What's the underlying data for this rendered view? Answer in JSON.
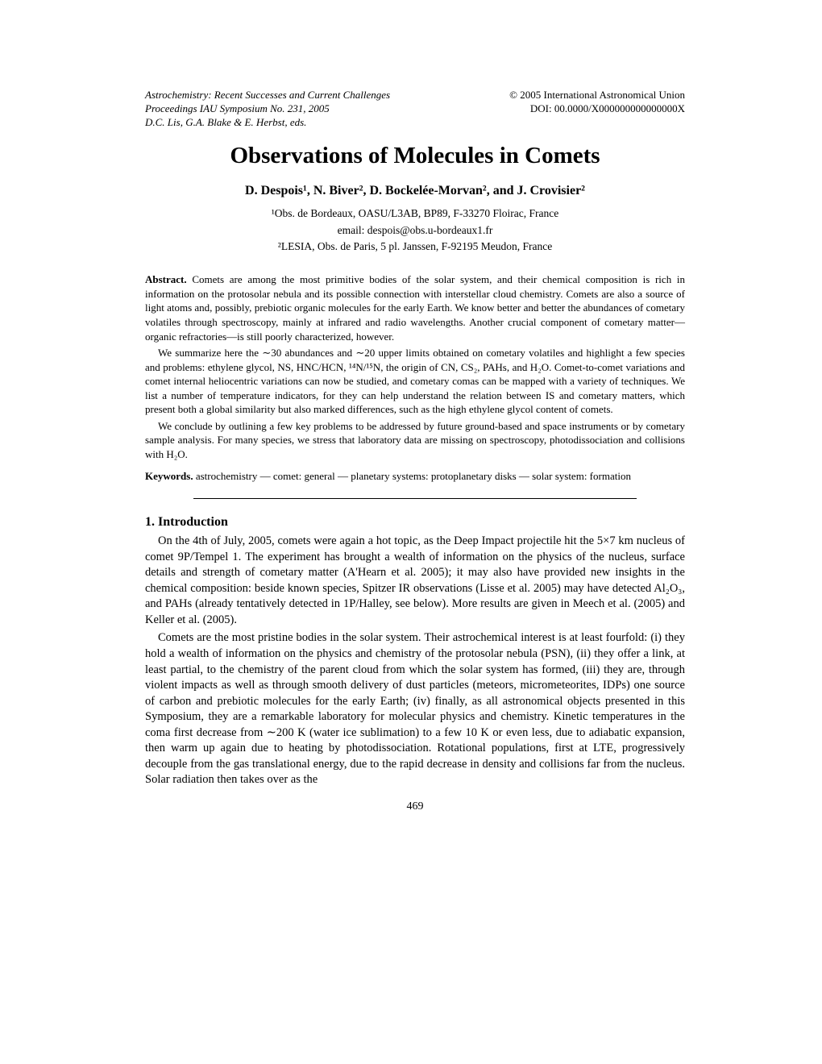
{
  "header": {
    "left_line1": "Astrochemistry: Recent Successes and Current Challenges",
    "left_line2": "Proceedings IAU Symposium No. 231, 2005",
    "left_line3": "D.C. Lis, G.A. Blake & E. Herbst, eds.",
    "right_line1": "© 2005 International Astronomical Union",
    "right_line2": "DOI: 00.0000/X000000000000000X"
  },
  "title": "Observations of Molecules in Comets",
  "authors": "D. Despois¹, N. Biver², D. Bockelée-Morvan², and J. Crovisier²",
  "affiliations": {
    "aff1": "¹Obs. de Bordeaux, OASU/L3AB, BP89, F-33270 Floirac, France",
    "email": "email: despois@obs.u-bordeaux1.fr",
    "aff2": "²LESIA, Obs. de Paris, 5 pl. Janssen, F-92195 Meudon, France"
  },
  "abstract": {
    "label": "Abstract.",
    "p1": " Comets are among the most primitive bodies of the solar system, and their chemical composition is rich in information on the protosolar nebula and its possible connection with interstellar cloud chemistry. Comets are also a source of light atoms and, possibly, prebiotic organic molecules for the early Earth. We know better and better the abundances of cometary volatiles through spectroscopy, mainly at infrared and radio wavelengths. Another crucial component of cometary matter—organic refractories—is still poorly characterized, however.",
    "p2": "We summarize here the ∼30 abundances and ∼20 upper limits obtained on cometary volatiles and highlight a few species and problems: ethylene glycol, NS, HNC/HCN, ¹⁴N/¹⁵N, the origin of CN, CS₂, PAHs, and H₂O. Comet-to-comet variations and comet internal heliocentric variations can now be studied, and cometary comas can be mapped with a variety of techniques. We list a number of temperature indicators, for they can help understand the relation between IS and cometary matters, which present both a global similarity but also marked differences, such as the high ethylene glycol content of comets.",
    "p3": "We conclude by outlining a few key problems to be addressed by future ground-based and space instruments or by cometary sample analysis. For many species, we stress that laboratory data are missing on spectroscopy, photodissociation and collisions with H₂O."
  },
  "keywords": {
    "label": "Keywords.",
    "text": " astrochemistry — comet: general — planetary systems: protoplanetary disks — solar system: formation"
  },
  "section1": {
    "heading": "1. Introduction",
    "p1": "On the 4th of July, 2005, comets were again a hot topic, as the Deep Impact projectile hit the 5×7 km nucleus of comet 9P/Tempel 1. The experiment has brought a wealth of information on the physics of the nucleus, surface details and strength of cometary matter (A'Hearn et al. 2005); it may also have provided new insights in the chemical composition: beside known species, Spitzer IR observations (Lisse et al. 2005) may have detected Al₂O₃, and PAHs (already tentatively detected in 1P/Halley, see below). More results are given in Meech et al. (2005) and Keller et al. (2005).",
    "p2": "Comets are the most pristine bodies in the solar system. Their astrochemical interest is at least fourfold: (i) they hold a wealth of information on the physics and chemistry of the protosolar nebula (PSN), (ii) they offer a link, at least partial, to the chemistry of the parent cloud from which the solar system has formed, (iii) they are, through violent impacts as well as through smooth delivery of dust particles (meteors, micrometeorites, IDPs) one source of carbon and prebiotic molecules for the early Earth; (iv) finally, as all astronomical objects presented in this Symposium, they are a remarkable laboratory for molecular physics and chemistry. Kinetic temperatures in the coma first decrease from ∼200 K (water ice sublimation) to a few 10 K or even less, due to adiabatic expansion, then warm up again due to heating by photodissociation. Rotational populations, first at LTE, progressively decouple from the gas translational energy, due to the rapid decrease in density and collisions far from the nucleus. Solar radiation then takes over as the"
  },
  "page_number": "469"
}
